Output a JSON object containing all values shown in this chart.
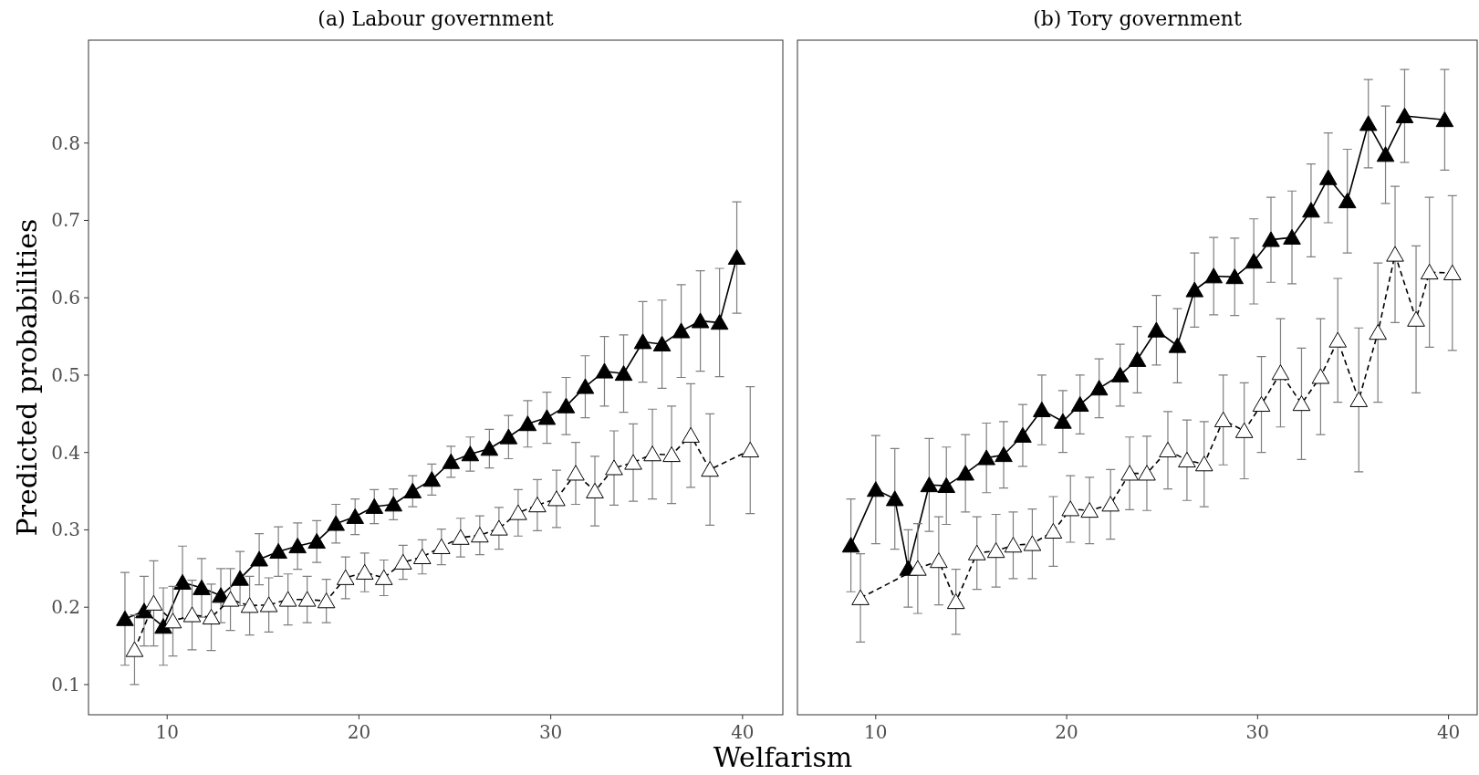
{
  "chart_data": [
    {
      "type": "line",
      "title": "(a) Labour government",
      "xlabel": "Welfarism",
      "ylabel": "Predicted probabilities",
      "xlim": [
        5.9,
        42.1
      ],
      "xticks": [
        10,
        20,
        30,
        40
      ],
      "ylim": [
        0.061,
        0.933
      ],
      "yticks": [
        0.1,
        0.2,
        0.3,
        0.4,
        0.5,
        0.6,
        0.7,
        0.8
      ],
      "marker": "triangle",
      "series": [
        {
          "color": "#000000",
          "line_style": "solid",
          "x": [
            7.8,
            8.8,
            9.8,
            10.8,
            11.8,
            12.8,
            13.8,
            14.8,
            15.8,
            16.8,
            17.8,
            18.8,
            19.8,
            20.8,
            21.8,
            22.8,
            23.8,
            24.8,
            25.8,
            26.8,
            27.8,
            28.8,
            29.8,
            30.8,
            31.8,
            32.8,
            33.8,
            34.8,
            35.8,
            36.8,
            37.8,
            38.8,
            39.7
          ],
          "values": [
            0.185,
            0.195,
            0.175,
            0.232,
            0.225,
            0.215,
            0.237,
            0.262,
            0.272,
            0.279,
            0.285,
            0.308,
            0.317,
            0.33,
            0.333,
            0.35,
            0.365,
            0.388,
            0.398,
            0.405,
            0.42,
            0.437,
            0.445,
            0.46,
            0.485,
            0.505,
            0.502,
            0.543,
            0.54,
            0.557,
            0.57,
            0.568,
            0.652
          ],
          "errors": [
            0.06,
            0.045,
            0.05,
            0.047,
            0.038,
            0.035,
            0.035,
            0.033,
            0.032,
            0.03,
            0.027,
            0.025,
            0.023,
            0.022,
            0.02,
            0.02,
            0.02,
            0.02,
            0.022,
            0.025,
            0.028,
            0.03,
            0.033,
            0.037,
            0.04,
            0.045,
            0.05,
            0.052,
            0.057,
            0.06,
            0.065,
            0.07,
            0.072
          ]
        },
        {
          "color": "#ffffff",
          "line_style": "dashed",
          "x": [
            8.3,
            9.3,
            10.3,
            11.3,
            12.3,
            13.3,
            14.3,
            15.3,
            16.3,
            17.3,
            18.3,
            19.3,
            20.3,
            21.3,
            22.3,
            23.3,
            24.3,
            25.3,
            26.3,
            27.3,
            28.3,
            29.3,
            30.3,
            31.3,
            32.3,
            33.3,
            34.3,
            35.3,
            36.3,
            37.3,
            38.3,
            40.4
          ],
          "values": [
            0.145,
            0.205,
            0.182,
            0.19,
            0.187,
            0.21,
            0.202,
            0.203,
            0.21,
            0.21,
            0.208,
            0.238,
            0.245,
            0.238,
            0.258,
            0.265,
            0.278,
            0.29,
            0.293,
            0.302,
            0.322,
            0.332,
            0.34,
            0.373,
            0.35,
            0.38,
            0.387,
            0.398,
            0.397,
            0.422,
            0.378,
            0.403
          ],
          "errors": [
            0.045,
            0.055,
            0.045,
            0.045,
            0.043,
            0.04,
            0.038,
            0.035,
            0.033,
            0.03,
            0.028,
            0.027,
            0.025,
            0.023,
            0.022,
            0.022,
            0.023,
            0.025,
            0.025,
            0.027,
            0.03,
            0.033,
            0.037,
            0.04,
            0.045,
            0.048,
            0.05,
            0.058,
            0.063,
            0.067,
            0.072,
            0.082
          ]
        }
      ]
    },
    {
      "type": "line",
      "title": "(b) Tory government",
      "xlim": [
        5.9,
        41.5
      ],
      "xticks": [
        10,
        20,
        30,
        40
      ],
      "ylim": [
        0.061,
        0.933
      ],
      "yticks": [
        0.1,
        0.2,
        0.3,
        0.4,
        0.5,
        0.6,
        0.7,
        0.8
      ],
      "tick_labels": "x",
      "marker": "triangle",
      "series": [
        {
          "color": "#000000",
          "line_style": "solid",
          "x": [
            8.7,
            10.0,
            11.0,
            11.7,
            12.8,
            13.7,
            14.7,
            15.8,
            16.7,
            17.7,
            18.7,
            19.8,
            20.7,
            21.7,
            22.8,
            23.7,
            24.7,
            25.8,
            26.7,
            27.7,
            28.8,
            29.8,
            30.7,
            31.8,
            32.8,
            33.7,
            34.7,
            35.8,
            36.7,
            37.7,
            39.8
          ],
          "values": [
            0.28,
            0.352,
            0.34,
            0.25,
            0.358,
            0.357,
            0.373,
            0.393,
            0.397,
            0.422,
            0.455,
            0.44,
            0.462,
            0.483,
            0.5,
            0.52,
            0.558,
            0.538,
            0.61,
            0.628,
            0.627,
            0.647,
            0.675,
            0.678,
            0.713,
            0.755,
            0.725,
            0.825,
            0.785,
            0.835,
            0.83
          ],
          "errors": [
            0.06,
            0.07,
            0.065,
            0.05,
            0.06,
            0.05,
            0.05,
            0.045,
            0.043,
            0.04,
            0.045,
            0.04,
            0.038,
            0.038,
            0.04,
            0.043,
            0.045,
            0.048,
            0.048,
            0.05,
            0.05,
            0.055,
            0.055,
            0.06,
            0.06,
            0.058,
            0.067,
            0.057,
            0.063,
            0.06,
            0.065
          ]
        },
        {
          "color": "#ffffff",
          "line_style": "dashed",
          "x": [
            9.2,
            12.2,
            13.3,
            14.2,
            15.3,
            16.3,
            17.2,
            18.2,
            19.3,
            20.2,
            21.2,
            22.3,
            23.3,
            24.2,
            25.3,
            26.3,
            27.2,
            28.2,
            29.3,
            30.2,
            31.2,
            32.3,
            33.3,
            34.2,
            35.3,
            36.3,
            37.2,
            38.3,
            39.0,
            40.2
          ],
          "values": [
            0.212,
            0.25,
            0.26,
            0.207,
            0.27,
            0.273,
            0.28,
            0.282,
            0.298,
            0.327,
            0.325,
            0.333,
            0.373,
            0.373,
            0.403,
            0.39,
            0.385,
            0.442,
            0.428,
            0.462,
            0.503,
            0.463,
            0.498,
            0.545,
            0.468,
            0.555,
            0.656,
            0.572,
            0.633,
            0.632
          ],
          "errors": [
            0.057,
            0.058,
            0.057,
            0.042,
            0.047,
            0.047,
            0.043,
            0.045,
            0.045,
            0.043,
            0.043,
            0.045,
            0.047,
            0.048,
            0.05,
            0.052,
            0.055,
            0.058,
            0.062,
            0.062,
            0.07,
            0.072,
            0.075,
            0.08,
            0.093,
            0.09,
            0.088,
            0.095,
            0.097,
            0.1
          ]
        }
      ]
    }
  ]
}
